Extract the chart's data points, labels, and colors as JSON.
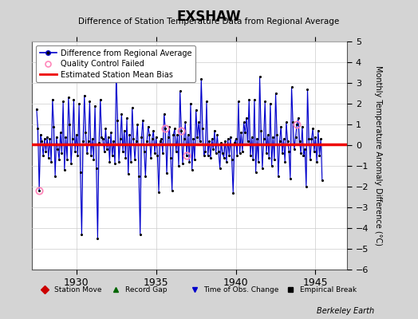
{
  "title": "EXSHAW",
  "subtitle": "Difference of Station Temperature Data from Regional Average",
  "ylabel": "Monthly Temperature Anomaly Difference (°C)",
  "xtick_years": [
    1930,
    1935,
    1940,
    1945
  ],
  "xlim": [
    1927.2,
    1947.0
  ],
  "ylim": [
    -6,
    5
  ],
  "yticks": [
    -6,
    -5,
    -4,
    -3,
    -2,
    -1,
    0,
    1,
    2,
    3,
    4,
    5
  ],
  "bias_value": 0.05,
  "line_color": "#0000cc",
  "fill_color": "#8888dd",
  "dot_color": "#000000",
  "bias_color": "#ee0000",
  "qc_color": "#ff88bb",
  "bg_color": "#d4d4d4",
  "plot_bg": "#ffffff",
  "watermark": "Berkeley Earth",
  "start_decimal_year": 1927.5,
  "qc_failed_indices": [
    2,
    97,
    109,
    113,
    196
  ],
  "values": [
    1.75,
    0.8,
    -2.2,
    0.5,
    0.2,
    -0.5,
    0.3,
    -0.3,
    0.4,
    -0.6,
    0.3,
    -0.8,
    2.2,
    0.9,
    -1.5,
    0.4,
    -0.2,
    -0.7,
    0.6,
    -0.4,
    2.1,
    -1.2,
    0.4,
    -0.7,
    2.3,
    1.0,
    -0.9,
    0.3,
    2.2,
    -0.3,
    0.5,
    -0.5,
    2.0,
    -1.3,
    -4.3,
    0.2,
    2.4,
    0.6,
    -0.4,
    0.2,
    2.1,
    -0.5,
    0.3,
    -0.7,
    1.9,
    -1.1,
    -4.5,
    0.1,
    2.2,
    0.4,
    0.3,
    -0.3,
    0.8,
    -0.2,
    0.4,
    -0.8,
    0.6,
    -0.5,
    0.2,
    -0.9,
    3.5,
    1.2,
    -0.8,
    0.3,
    1.5,
    -0.3,
    0.7,
    -0.6,
    1.3,
    -1.4,
    0.5,
    -0.8,
    1.8,
    0.3,
    -0.7,
    0.2,
    1.0,
    -1.5,
    -4.3,
    0.4,
    1.2,
    -0.3,
    -1.5,
    0.2,
    0.9,
    0.5,
    -0.6,
    0.3,
    0.7,
    -0.4,
    0.4,
    -0.5,
    -2.25,
    0.2,
    0.3,
    -0.4,
    1.5,
    0.8,
    -1.35,
    0.4,
    0.9,
    -0.6,
    -2.2,
    0.5,
    0.8,
    -0.3,
    0.5,
    -1.0,
    2.6,
    0.7,
    -0.9,
    0.3,
    1.1,
    -0.5,
    0.5,
    -0.8,
    2.0,
    -1.2,
    0.3,
    -0.7,
    1.7,
    0.4,
    1.1,
    0.2,
    3.2,
    0.8,
    -0.5,
    -0.3,
    2.1,
    -0.5,
    0.2,
    -0.6,
    0.3,
    -0.2,
    0.7,
    -0.4,
    0.5,
    -0.3,
    -1.1,
    0.1,
    -0.4,
    -0.6,
    0.2,
    -0.8,
    0.3,
    -0.5,
    0.4,
    -0.7,
    -2.3,
    0.1,
    0.3,
    -0.5,
    2.1,
    -0.4,
    0.6,
    -0.3,
    1.1,
    0.6,
    1.3,
    0.2,
    2.2,
    -0.5,
    0.4,
    -0.7,
    2.2,
    -1.3,
    0.3,
    -0.8,
    3.3,
    0.7,
    -1.1,
    0.3,
    2.1,
    -0.4,
    0.5,
    -0.6,
    2.0,
    -1.0,
    0.4,
    -0.7,
    2.5,
    0.5,
    -1.5,
    0.2,
    0.9,
    -0.4,
    0.3,
    -0.8,
    1.1,
    0.2,
    -0.3,
    -1.6,
    2.8,
    1.1,
    -0.2,
    0.4,
    1.0,
    1.3,
    0.2,
    -0.4,
    0.9,
    -0.5,
    -0.2,
    -2.0,
    2.7,
    0.3,
    -0.7,
    0.3,
    0.8,
    -0.3,
    0.4,
    -0.8,
    0.7,
    -0.5,
    0.3,
    -1.7
  ]
}
